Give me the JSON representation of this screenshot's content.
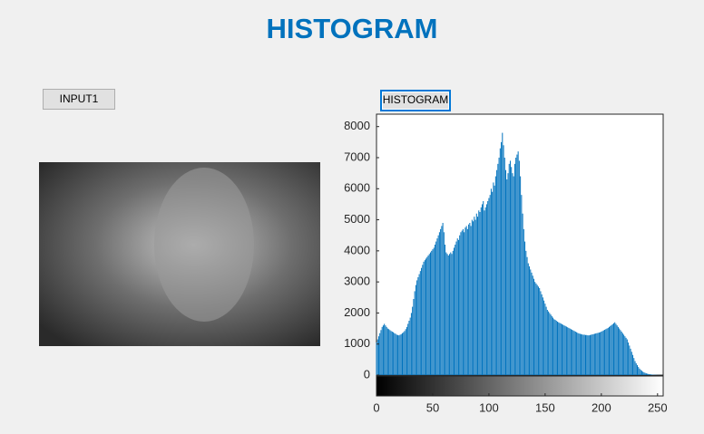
{
  "window": {
    "title": "HISTOGRAM"
  },
  "buttons": [
    "INPUT1",
    "HISTOGRAM"
  ],
  "chart_data": {
    "type": "histogram",
    "color": "#0072bd",
    "xlim": [
      0,
      255
    ],
    "ylim": [
      0,
      8400
    ],
    "xticks": [
      0,
      50,
      100,
      150,
      200,
      250
    ],
    "yticks": [
      0,
      1000,
      2000,
      3000,
      4000,
      5000,
      6000,
      7000,
      8000
    ],
    "x": [
      0,
      1,
      2,
      3,
      4,
      5,
      6,
      7,
      8,
      9,
      10,
      11,
      12,
      13,
      14,
      15,
      16,
      17,
      18,
      19,
      20,
      21,
      22,
      23,
      24,
      25,
      26,
      27,
      28,
      29,
      30,
      31,
      32,
      33,
      34,
      35,
      36,
      37,
      38,
      39,
      40,
      41,
      42,
      43,
      44,
      45,
      46,
      47,
      48,
      49,
      50,
      51,
      52,
      53,
      54,
      55,
      56,
      57,
      58,
      59,
      60,
      61,
      62,
      63,
      64,
      65,
      66,
      67,
      68,
      69,
      70,
      71,
      72,
      73,
      74,
      75,
      76,
      77,
      78,
      79,
      80,
      81,
      82,
      83,
      84,
      85,
      86,
      87,
      88,
      89,
      90,
      91,
      92,
      93,
      94,
      95,
      96,
      97,
      98,
      99,
      100,
      101,
      102,
      103,
      104,
      105,
      106,
      107,
      108,
      109,
      110,
      111,
      112,
      113,
      114,
      115,
      116,
      117,
      118,
      119,
      120,
      121,
      122,
      123,
      124,
      125,
      126,
      127,
      128,
      129,
      130,
      131,
      132,
      133,
      134,
      135,
      136,
      137,
      138,
      139,
      140,
      141,
      142,
      143,
      144,
      145,
      146,
      147,
      148,
      149,
      150,
      151,
      152,
      153,
      154,
      155,
      156,
      157,
      158,
      159,
      160,
      161,
      162,
      163,
      164,
      165,
      166,
      167,
      168,
      169,
      170,
      171,
      172,
      173,
      174,
      175,
      176,
      177,
      178,
      179,
      180,
      181,
      182,
      183,
      184,
      185,
      186,
      187,
      188,
      189,
      190,
      191,
      192,
      193,
      194,
      195,
      196,
      197,
      198,
      199,
      200,
      201,
      202,
      203,
      204,
      205,
      206,
      207,
      208,
      209,
      210,
      211,
      212,
      213,
      214,
      215,
      216,
      217,
      218,
      219,
      220,
      221,
      222,
      223,
      224,
      225,
      226,
      227,
      228,
      229,
      230,
      231,
      232,
      233,
      234,
      235,
      236,
      237,
      238,
      239,
      240,
      241,
      242,
      243,
      244,
      245,
      246,
      247,
      248,
      249,
      250,
      251,
      252,
      253,
      254,
      255
    ],
    "values": [
      1050,
      1150,
      1250,
      1350,
      1450,
      1550,
      1600,
      1650,
      1600,
      1550,
      1500,
      1480,
      1450,
      1420,
      1400,
      1380,
      1350,
      1330,
      1300,
      1290,
      1280,
      1300,
      1320,
      1350,
      1380,
      1420,
      1480,
      1550,
      1650,
      1750,
      1850,
      2000,
      2200,
      2450,
      2700,
      2900,
      3050,
      3150,
      3250,
      3350,
      3450,
      3550,
      3650,
      3700,
      3750,
      3800,
      3850,
      3900,
      3950,
      4000,
      4050,
      4100,
      4200,
      4300,
      4400,
      4500,
      4600,
      4700,
      4800,
      4900,
      4600,
      4200,
      3950,
      3900,
      3850,
      3900,
      3950,
      3900,
      4000,
      4100,
      4200,
      4300,
      4400,
      4350,
      4500,
      4600,
      4650,
      4700,
      4600,
      4750,
      4800,
      4700,
      4850,
      4900,
      4800,
      5000,
      4950,
      5100,
      5000,
      5200,
      5100,
      5300,
      5250,
      5400,
      5500,
      5600,
      5300,
      5400,
      5500,
      5600,
      5700,
      5800,
      6000,
      5900,
      6200,
      6100,
      6400,
      6600,
      6800,
      7000,
      7300,
      7500,
      7800,
      7400,
      7000,
      6600,
      6300,
      6500,
      6800,
      6900,
      6700,
      6500,
      6400,
      6800,
      7000,
      7100,
      7200,
      6900,
      6400,
      5800,
      5200,
      4700,
      4300,
      4000,
      3800,
      3600,
      3500,
      3400,
      3300,
      3200,
      3100,
      3000,
      2950,
      2900,
      2850,
      2800,
      2700,
      2600,
      2500,
      2400,
      2300,
      2200,
      2100,
      2050,
      2000,
      1950,
      1900,
      1850,
      1800,
      1780,
      1750,
      1720,
      1700,
      1680,
      1660,
      1640,
      1620,
      1600,
      1580,
      1560,
      1540,
      1520,
      1500,
      1480,
      1460,
      1440,
      1420,
      1400,
      1380,
      1360,
      1340,
      1330,
      1320,
      1310,
      1300,
      1300,
      1290,
      1290,
      1280,
      1280,
      1290,
      1300,
      1310,
      1320,
      1330,
      1340,
      1350,
      1360,
      1370,
      1380,
      1400,
      1420,
      1440,
      1460,
      1480,
      1500,
      1520,
      1550,
      1580,
      1610,
      1640,
      1670,
      1700,
      1650,
      1600,
      1550,
      1500,
      1450,
      1400,
      1350,
      1300,
      1250,
      1200,
      1150,
      1050,
      950,
      850,
      750,
      650,
      550,
      450,
      380,
      320,
      260,
      210,
      170,
      140,
      110,
      90,
      70,
      55,
      45,
      35,
      28,
      22,
      17,
      13,
      10,
      8,
      6,
      4,
      3,
      2,
      1,
      1,
      0
    ]
  }
}
